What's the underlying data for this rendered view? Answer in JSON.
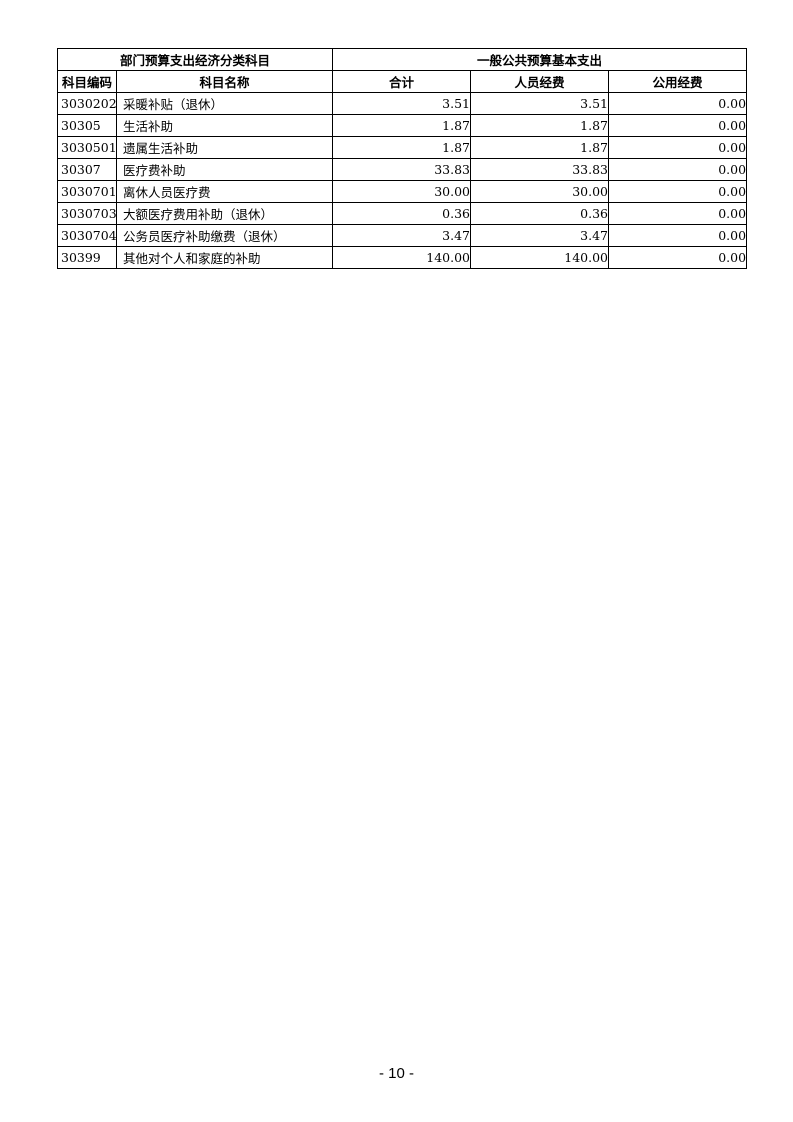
{
  "table": {
    "group_headers": [
      "部门预算支出经济分类科目",
      "一般公共预算基本支出"
    ],
    "columns": [
      "科目编码",
      "科目名称",
      "合计",
      "人员经费",
      "公用经费"
    ],
    "rows": [
      {
        "code": "3030202",
        "name": "采暖补贴（退休）",
        "total": "3.51",
        "personnel": "3.51",
        "public": "0.00"
      },
      {
        "code": "30305",
        "name": "生活补助",
        "total": "1.87",
        "personnel": "1.87",
        "public": "0.00"
      },
      {
        "code": "3030501",
        "name": "遗属生活补助",
        "total": "1.87",
        "personnel": "1.87",
        "public": "0.00"
      },
      {
        "code": "30307",
        "name": "医疗费补助",
        "total": "33.83",
        "personnel": "33.83",
        "public": "0.00"
      },
      {
        "code": "3030701",
        "name": "离休人员医疗费",
        "total": "30.00",
        "personnel": "30.00",
        "public": "0.00"
      },
      {
        "code": "3030703",
        "name": "大额医疗费用补助（退休）",
        "total": "0.36",
        "personnel": "0.36",
        "public": "0.00"
      },
      {
        "code": "3030704",
        "name": "公务员医疗补助缴费（退休）",
        "total": "3.47",
        "personnel": "3.47",
        "public": "0.00"
      },
      {
        "code": "30399",
        "name": "其他对个人和家庭的补助",
        "total": "140.00",
        "personnel": "140.00",
        "public": "0.00"
      }
    ]
  },
  "footer": {
    "page_number": "- 10 -"
  }
}
